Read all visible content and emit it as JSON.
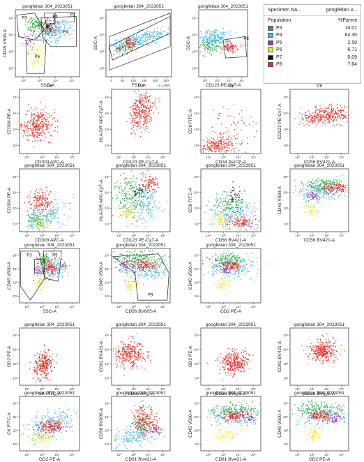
{
  "colors": {
    "P3": "#2faa3a",
    "P4": "#45b9e6",
    "P5": "#9b37b0",
    "P6": "#f0e634",
    "P7": "#111111",
    "P8": "#e8302a"
  },
  "legend": {
    "specimen_label": "Specimen Na...",
    "specimen_value": "gongfeitan 3...",
    "col_population": "Population",
    "col_parent": "%Parent",
    "rows": [
      {
        "name": "P3",
        "value": "14.01",
        "color": "#2faa3a"
      },
      {
        "name": "P4",
        "value": "64.30",
        "color": "#45b9e6"
      },
      {
        "name": "P5",
        "value": "2.50",
        "color": "#9b37b0"
      },
      {
        "name": "P6",
        "value": "6.71",
        "color": "#f0e634"
      },
      {
        "name": "P7",
        "value": "0.09",
        "color": "#111111"
      },
      {
        "name": "P8",
        "value": "7.64",
        "color": "#e8302a"
      }
    ]
  },
  "chart_data": [
    {
      "type": "scatter",
      "title": "gongfeitan 304_2023051",
      "xlabel": "SSC-A",
      "ylabel": "CD45 V500-A",
      "populations": [
        "P3",
        "P4",
        "P5",
        "P6",
        "P7",
        "P8"
      ],
      "gate_labels": [
        "P3",
        "P4",
        "P5",
        "P6",
        "P7"
      ],
      "x_ticks": [
        "10²",
        "10³",
        "10⁴",
        "10⁵"
      ],
      "y_ticks": [
        "10²",
        "10³",
        "10⁴",
        "10⁵"
      ]
    },
    {
      "type": "scatter",
      "title": "gongfeitan 304_2023051",
      "xlabel": "FSC-A",
      "ylabel": "SSC-A",
      "populations": [
        "P3",
        "P4",
        "P8"
      ],
      "gate_labels": [
        "P1",
        "P2"
      ],
      "x_ticks": [
        "0",
        "50",
        "100",
        "150",
        "200",
        "250"
      ],
      "x_unit": "(x 1,000)",
      "y_ticks": [
        "10²",
        "10³",
        "10⁴",
        "10⁵"
      ]
    },
    {
      "type": "scatter",
      "title": "gongfeitan 304_2023051",
      "xlabel": "CD123 PE-Cy7-A",
      "ylabel": "SSC-A",
      "populations": [
        "P4",
        "P3",
        "P8"
      ],
      "gate_labels": [
        "P8"
      ],
      "x_ticks": [
        "10²",
        "10³",
        "10⁴",
        "10⁵"
      ],
      "y_ticks": [
        "10²",
        "10³",
        "10⁴",
        "10⁵"
      ]
    },
    {
      "type": "scatter",
      "title": "P8",
      "xlabel": "CD303 APC-A",
      "ylabel": "CD304 PE-A",
      "populations": [
        "P8"
      ]
    },
    {
      "type": "scatter",
      "title": "P8",
      "xlabel": "CD123 PE-Cy7-A",
      "ylabel": "HLA-DR APC-Cy7-A",
      "populations": [
        "P8"
      ]
    },
    {
      "type": "scatter",
      "title": "P8",
      "xlabel": "CD34 PerCP-A",
      "ylabel": "CD9 FITC-A",
      "populations": [
        "P8"
      ]
    },
    {
      "type": "scatter",
      "title": "P8",
      "xlabel": "CD56 BV421-A",
      "ylabel": "CD123 PE-Cy7-A",
      "populations": [
        "P8"
      ]
    },
    {
      "type": "scatter",
      "title": "gongfeitan 304_2023051",
      "xlabel": "CD303 APC-A",
      "ylabel": "CD304 PE-A",
      "populations": [
        "P4",
        "P3",
        "P6",
        "P8"
      ]
    },
    {
      "type": "scatter",
      "title": "gongfeitan 304_2023051",
      "xlabel": "CD123 PE-Cy7-A",
      "ylabel": "HLA-DR APC-Cy7-A",
      "populations": [
        "P3",
        "P4",
        "P6",
        "P7",
        "P8"
      ]
    },
    {
      "type": "scatter",
      "title": "gongfeitan 304_2023051",
      "xlabel": "CD56 BV421-A",
      "ylabel": "CD9 FITC-A",
      "populations": [
        "P3",
        "P4",
        "P6",
        "P7",
        "P8"
      ]
    },
    {
      "type": "scatter",
      "title": "gongfeitan 304_2023051",
      "xlabel": "CD56 BV421-A",
      "ylabel": "CD45 V500-A",
      "populations": [
        "P3",
        "P4",
        "P5",
        "P6",
        "P8"
      ]
    },
    {
      "type": "scatter",
      "title": "gongfeitan 304_2023051",
      "xlabel": "SSC-A",
      "ylabel": "CD45 V500-A",
      "populations": [
        "P3",
        "P4",
        "P5",
        "P6",
        "P8"
      ],
      "gate_labels": [
        "P3",
        "P4",
        "P5"
      ]
    },
    {
      "type": "scatter",
      "title": "gongfeitan 304_2023051",
      "xlabel": "CD56 BV605-A",
      "ylabel": "CD45 V500-A",
      "populations": [
        "P3",
        "P4",
        "P5",
        "P6",
        "P8"
      ],
      "gate_labels": [
        "P9"
      ]
    },
    {
      "type": "scatter",
      "title": "gongfeitan 304_2023051",
      "xlabel": "GD2 PE-A",
      "ylabel": "CD45 V500-A",
      "populations": [
        "P3",
        "P4",
        "P5",
        "P6",
        "P8"
      ]
    },
    {
      "type": "scatter",
      "title": "gongfeitan 304_2023051",
      "xlabel": "CK FITC-A",
      "ylabel": "GD2 PE-A",
      "populations": [
        "P8"
      ]
    },
    {
      "type": "scatter",
      "title": "gongfeitan 304_2023051",
      "xlabel": "CD56 APC-A",
      "ylabel": "CD81 BV421-A",
      "populations": [
        "P8"
      ]
    },
    {
      "type": "scatter",
      "title": "gongfeitan 304_2023051",
      "xlabel": "CD56 BV605-A",
      "ylabel": "GD2 PE-A",
      "populations": [
        "P8"
      ]
    },
    {
      "type": "scatter",
      "title": "gongfeitan 304_2023051",
      "xlabel": "CD56 BV605-A",
      "ylabel": "CD81 BV421-A",
      "populations": [
        "P8"
      ]
    },
    {
      "type": "scatter",
      "title": "gongfeitan 304_2023051",
      "xlabel": "GD2 PE-A",
      "ylabel": "CK FITC-A",
      "populations": [
        "P4",
        "P6",
        "P8"
      ]
    },
    {
      "type": "scatter",
      "title": "gongfeitan 304_2023051",
      "xlabel": "CD81 BV421-A",
      "ylabel": "CD56 BV605-A",
      "populations": [
        "P4",
        "P3",
        "P5",
        "P8"
      ]
    },
    {
      "type": "scatter",
      "title": "gongfeitan 304_2023051",
      "xlabel": "CD81 BV421-A",
      "ylabel": "CD45 V500-A",
      "populations": [
        "P3",
        "P4",
        "P5",
        "P6",
        "P8"
      ]
    },
    {
      "type": "scatter",
      "title": "gongfeitan 304_2023051",
      "xlabel": "GD2 PE-A",
      "ylabel": "CD45 V500-A",
      "populations": [
        "P3",
        "P4",
        "P5",
        "P6",
        "P8"
      ]
    }
  ]
}
